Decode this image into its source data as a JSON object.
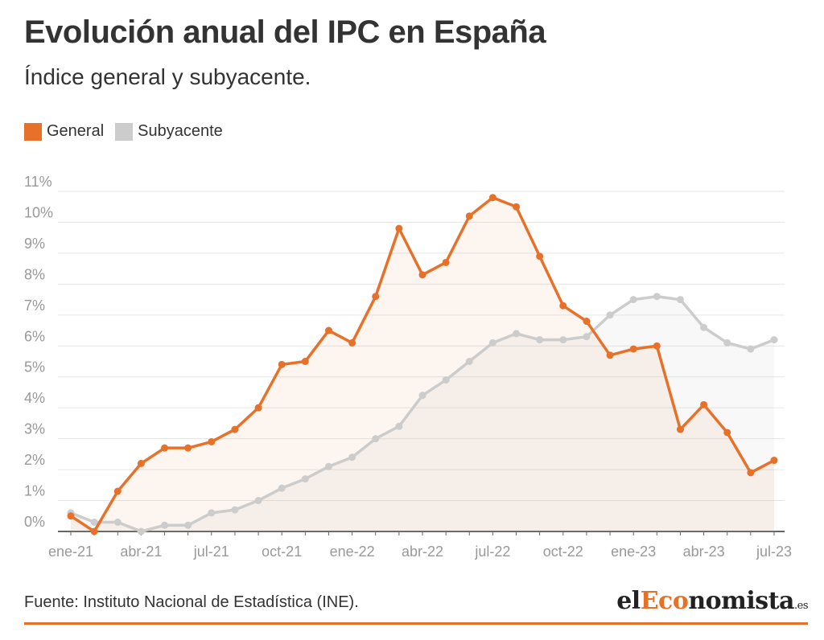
{
  "header": {
    "title": "Evolución anual del IPC en España",
    "subtitle": "Índice general y subyacente."
  },
  "colors": {
    "general": "#e8712a",
    "subyacente": "#cccccc",
    "grid": "#e6e6e6",
    "accent": "#e8712a"
  },
  "chart_data": {
    "type": "line",
    "title": "Evolución anual del IPC en España",
    "subtitle": "Índice general y subyacente.",
    "xlabel": "",
    "ylabel": "",
    "ylim": [
      0,
      11
    ],
    "yticks": [
      0,
      1,
      2,
      3,
      4,
      5,
      6,
      7,
      8,
      9,
      10,
      11
    ],
    "ytick_labels": [
      "0%",
      "1%",
      "2%",
      "3%",
      "4%",
      "5%",
      "6%",
      "7%",
      "8%",
      "9%",
      "10%",
      "11%"
    ],
    "grid": true,
    "legend": "top-left",
    "x": [
      "ene-21",
      "feb-21",
      "mar-21",
      "abr-21",
      "may-21",
      "jun-21",
      "jul-21",
      "ago-21",
      "sep-21",
      "oct-21",
      "nov-21",
      "dic-21",
      "ene-22",
      "feb-22",
      "mar-22",
      "abr-22",
      "may-22",
      "jun-22",
      "jul-22",
      "ago-22",
      "sep-22",
      "oct-22",
      "nov-22",
      "dic-22",
      "ene-23",
      "feb-23",
      "mar-23",
      "abr-23",
      "may-23",
      "jun-23",
      "jul-23"
    ],
    "xtick_labels": [
      "ene-21",
      "abr-21",
      "jul-21",
      "oct-21",
      "ene-22",
      "abr-22",
      "jul-22",
      "oct-22",
      "ene-23",
      "abr-23",
      "jul-23"
    ],
    "series": [
      {
        "name": "General",
        "values": [
          0.5,
          0.0,
          1.3,
          2.2,
          2.7,
          2.7,
          2.9,
          3.3,
          4.0,
          5.4,
          5.5,
          6.5,
          6.1,
          7.6,
          9.8,
          8.3,
          8.7,
          10.2,
          10.8,
          10.5,
          8.9,
          7.3,
          6.8,
          5.7,
          5.9,
          6.0,
          3.3,
          4.1,
          3.2,
          1.9,
          2.3
        ]
      },
      {
        "name": "Subyacente",
        "values": [
          0.6,
          0.3,
          0.3,
          0.0,
          0.2,
          0.2,
          0.6,
          0.7,
          1.0,
          1.4,
          1.7,
          2.1,
          2.4,
          3.0,
          3.4,
          4.4,
          4.9,
          5.5,
          6.1,
          6.4,
          6.2,
          6.2,
          6.3,
          7.0,
          7.5,
          7.6,
          7.5,
          6.6,
          6.1,
          5.9,
          6.2
        ]
      }
    ]
  },
  "footer": {
    "source": "Fuente: Instituto Nacional de Estadística (INE).",
    "logo_prefix": "el",
    "logo_accent": "Eco",
    "logo_suffix": "nomista",
    "logo_tld": ".es"
  }
}
